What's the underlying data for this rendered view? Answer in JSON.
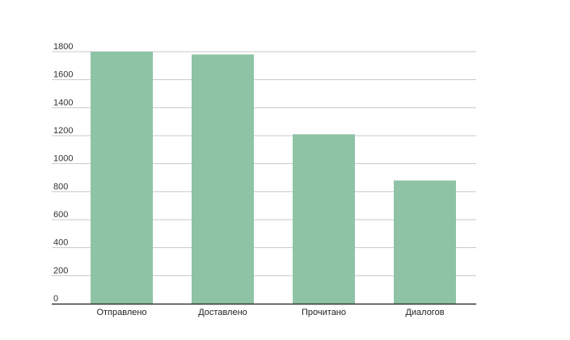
{
  "chart_data": {
    "type": "bar",
    "categories": [
      "Отправлено",
      "Доставлено",
      "Прочитано",
      "Диалогов"
    ],
    "values": [
      1800,
      1780,
      1210,
      880
    ],
    "yticks": [
      "0",
      "200",
      "400",
      "600",
      "800",
      "1000",
      "1200",
      "1400",
      "1600",
      "1800"
    ],
    "ylim": [
      0,
      1800
    ],
    "title": "",
    "xlabel": "",
    "ylabel": "",
    "grid": true,
    "legend": "none",
    "bar_color": "#8fc3a6",
    "grid_color": "#c8c8c8",
    "axis_color": "#333333"
  }
}
